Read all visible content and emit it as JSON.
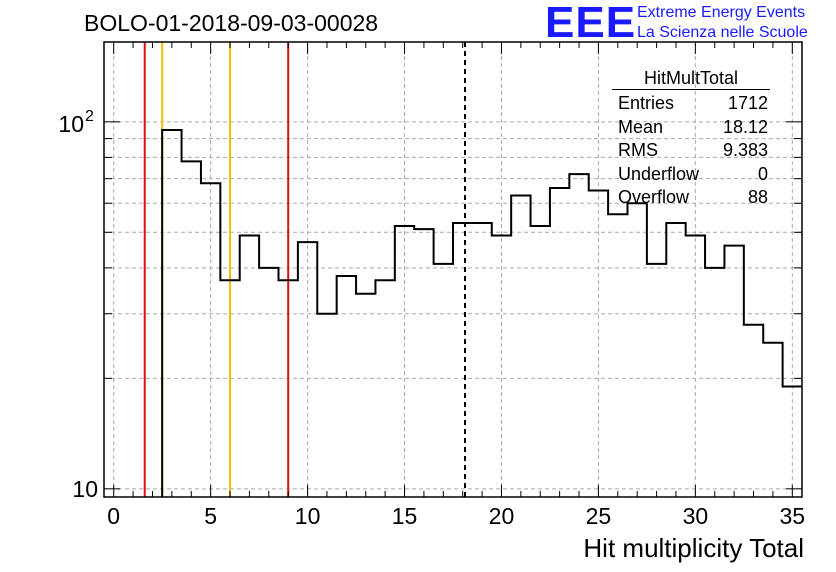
{
  "header": {
    "title": "BOLO-01-2018-09-03-00028",
    "logo": "EEE",
    "logo_line1": "Extreme Energy Events",
    "logo_line2": "La Scienza nelle Scuole"
  },
  "stats_box": {
    "title": "HitMultTotal",
    "rows": [
      {
        "label": "Entries",
        "value": "1712"
      },
      {
        "label": "Mean",
        "value": "18.12"
      },
      {
        "label": "RMS",
        "value": "9.383"
      },
      {
        "label": "Underflow",
        "value": "0"
      },
      {
        "label": "Overflow",
        "value": "88"
      }
    ]
  },
  "chart_data": {
    "type": "histogram",
    "title": "BOLO-01-2018-09-03-00028",
    "xlabel": "Hit multiplicity Total",
    "ylabel": "",
    "xlim": [
      -0.5,
      35.5
    ],
    "ylim": [
      9.5,
      165
    ],
    "yscale": "log",
    "grid": true,
    "x_ticks": [
      0,
      5,
      10,
      15,
      20,
      25,
      30,
      35
    ],
    "y_tick_labels": [
      {
        "value": 10,
        "label": "10"
      },
      {
        "value": 100,
        "label": "10^2"
      }
    ],
    "bin_width": 1,
    "bin_centers": [
      0,
      1,
      2,
      3,
      4,
      5,
      6,
      7,
      8,
      9,
      10,
      11,
      12,
      13,
      14,
      15,
      16,
      17,
      18,
      19,
      20,
      21,
      22,
      23,
      24,
      25,
      26,
      27,
      28,
      29,
      30,
      31,
      32,
      33,
      34,
      35
    ],
    "values": [
      0,
      0,
      0,
      95,
      78,
      68,
      37,
      49,
      40,
      37,
      47,
      30,
      38,
      34,
      37,
      52,
      51,
      41,
      53,
      53,
      49,
      63,
      52,
      66,
      72,
      65,
      56,
      60,
      41,
      53,
      49,
      40,
      46,
      28,
      25,
      19
    ],
    "vertical_lines": [
      {
        "x": 1.6,
        "color": "#e01010",
        "style": "solid"
      },
      {
        "x": 2.5,
        "color": "#f0c000",
        "style": "solid"
      },
      {
        "x": 6.0,
        "color": "#f0c000",
        "style": "solid"
      },
      {
        "x": 9.0,
        "color": "#e01010",
        "style": "solid"
      },
      {
        "x": 18.12,
        "color": "#000000",
        "style": "dashed"
      }
    ]
  }
}
